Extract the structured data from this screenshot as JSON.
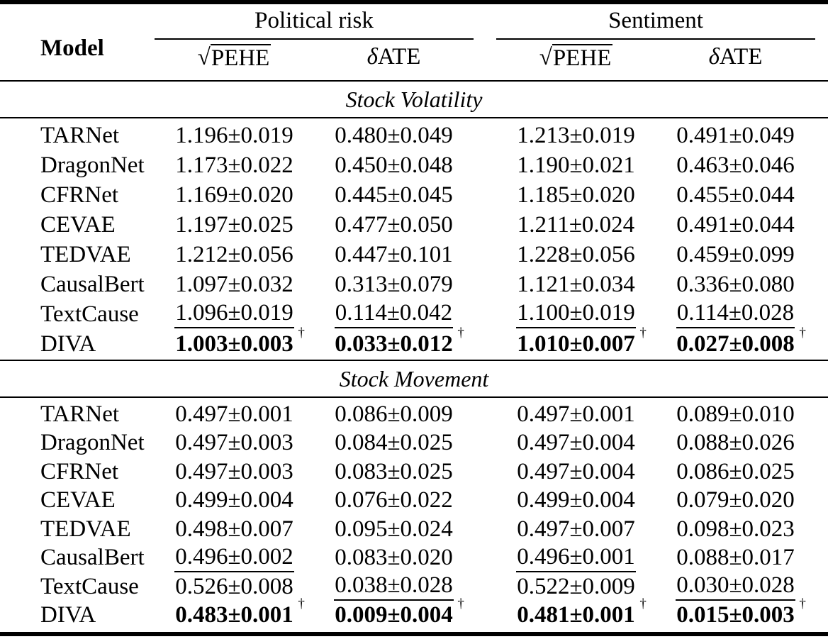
{
  "header": {
    "model": "Model",
    "group1": "Political risk",
    "group2": "Sentiment",
    "sub": {
      "radical": "√",
      "pehe": "PEHE",
      "delta": "δ",
      "ate": "ATE"
    }
  },
  "dagger_symbol": "†",
  "sections": [
    {
      "title": "Stock Volatility",
      "rows": [
        {
          "model": "TARNet",
          "cells": [
            {
              "text": "1.196±0.019"
            },
            {
              "text": "0.480±0.049"
            },
            {
              "text": "1.213±0.019"
            },
            {
              "text": "0.491±0.049"
            }
          ]
        },
        {
          "model": "DragonNet",
          "cells": [
            {
              "text": "1.173±0.022"
            },
            {
              "text": "0.450±0.048"
            },
            {
              "text": "1.190±0.021"
            },
            {
              "text": "0.463±0.046"
            }
          ]
        },
        {
          "model": "CFRNet",
          "cells": [
            {
              "text": "1.169±0.020"
            },
            {
              "text": "0.445±0.045"
            },
            {
              "text": "1.185±0.020"
            },
            {
              "text": "0.455±0.044"
            }
          ]
        },
        {
          "model": "CEVAE",
          "cells": [
            {
              "text": "1.197±0.025"
            },
            {
              "text": "0.477±0.050"
            },
            {
              "text": "1.211±0.024"
            },
            {
              "text": "0.491±0.044"
            }
          ]
        },
        {
          "model": "TEDVAE",
          "cells": [
            {
              "text": "1.212±0.056"
            },
            {
              "text": "0.447±0.101"
            },
            {
              "text": "1.228±0.056"
            },
            {
              "text": "0.459±0.099"
            }
          ]
        },
        {
          "model": "CausalBert",
          "cells": [
            {
              "text": "1.097±0.032"
            },
            {
              "text": "0.313±0.079"
            },
            {
              "text": "1.121±0.034"
            },
            {
              "text": "0.336±0.080"
            }
          ]
        },
        {
          "model": "TextCause",
          "cells": [
            {
              "text": "1.096±0.019",
              "underline": true
            },
            {
              "text": "0.114±0.042",
              "underline": true
            },
            {
              "text": "1.100±0.019",
              "underline": true
            },
            {
              "text": "0.114±0.028",
              "underline": true
            }
          ]
        },
        {
          "model": "DIVA",
          "cells": [
            {
              "text": "1.003±0.003",
              "bold": true,
              "dagger": true
            },
            {
              "text": "0.033±0.012",
              "bold": true,
              "dagger": true
            },
            {
              "text": "1.010±0.007",
              "bold": true,
              "dagger": true
            },
            {
              "text": "0.027±0.008",
              "bold": true,
              "dagger": true
            }
          ]
        }
      ]
    },
    {
      "title": "Stock Movement",
      "rows": [
        {
          "model": "TARNet",
          "cells": [
            {
              "text": "0.497±0.001"
            },
            {
              "text": "0.086±0.009"
            },
            {
              "text": "0.497±0.001"
            },
            {
              "text": "0.089±0.010"
            }
          ]
        },
        {
          "model": "DragonNet",
          "cells": [
            {
              "text": "0.497±0.003"
            },
            {
              "text": "0.084±0.025"
            },
            {
              "text": "0.497±0.004"
            },
            {
              "text": "0.088±0.026"
            }
          ]
        },
        {
          "model": "CFRNet",
          "cells": [
            {
              "text": "0.497±0.003"
            },
            {
              "text": "0.083±0.025"
            },
            {
              "text": "0.497±0.004"
            },
            {
              "text": "0.086±0.025"
            }
          ]
        },
        {
          "model": "CEVAE",
          "cells": [
            {
              "text": "0.499±0.004"
            },
            {
              "text": "0.076±0.022"
            },
            {
              "text": "0.499±0.004"
            },
            {
              "text": "0.079±0.020"
            }
          ]
        },
        {
          "model": "TEDVAE",
          "cells": [
            {
              "text": "0.498±0.007"
            },
            {
              "text": "0.095±0.024"
            },
            {
              "text": "0.497±0.007"
            },
            {
              "text": "0.098±0.023"
            }
          ]
        },
        {
          "model": "CausalBert",
          "cells": [
            {
              "text": "0.496±0.002",
              "underline": true
            },
            {
              "text": "0.083±0.020"
            },
            {
              "text": "0.496±0.001",
              "underline": true
            },
            {
              "text": "0.088±0.017"
            }
          ]
        },
        {
          "model": "TextCause",
          "cells": [
            {
              "text": "0.526±0.008"
            },
            {
              "text": "0.038±0.028",
              "underline": true
            },
            {
              "text": "0.522±0.009"
            },
            {
              "text": "0.030±0.028",
              "underline": true
            }
          ]
        },
        {
          "model": "DIVA",
          "cells": [
            {
              "text": "0.483±0.001",
              "bold": true,
              "dagger": true
            },
            {
              "text": "0.009±0.004",
              "bold": true,
              "dagger": true
            },
            {
              "text": "0.481±0.001",
              "bold": true,
              "dagger": true
            },
            {
              "text": "0.015±0.003",
              "bold": true,
              "dagger": true
            }
          ]
        }
      ]
    }
  ]
}
